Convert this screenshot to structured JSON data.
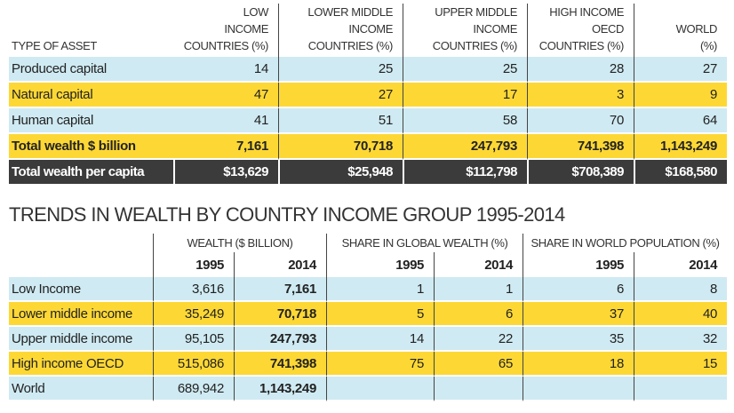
{
  "asset_table": {
    "headers": [
      "TYPE OF ASSET",
      "LOW INCOME COUNTRIES (%)",
      "LOWER MIDDLE INCOME COUNTRIES (%)",
      "UPPER MIDDLE INCOME COUNTRIES (%)",
      "HIGH INCOME OECD COUNTRIES (%)",
      "WORLD (%)"
    ],
    "header_lines": [
      [
        "TYPE OF ASSET"
      ],
      [
        "LOW",
        "INCOME",
        "COUNTRIES (%)"
      ],
      [
        "LOWER MIDDLE",
        "INCOME",
        "COUNTRIES (%)"
      ],
      [
        "UPPER MIDDLE",
        "INCOME",
        "COUNTRIES (%)"
      ],
      [
        "HIGH INCOME",
        "OECD",
        "COUNTRIES (%)"
      ],
      [
        "WORLD",
        "(%)"
      ]
    ],
    "rows": [
      {
        "label": "Produced capital",
        "values": [
          "14",
          "25",
          "25",
          "28",
          "27"
        ],
        "style": "blue"
      },
      {
        "label": "Natural capital",
        "values": [
          "47",
          "27",
          "17",
          "3",
          "9"
        ],
        "style": "yellow"
      },
      {
        "label": "Human capital",
        "values": [
          "41",
          "51",
          "58",
          "70",
          "64"
        ],
        "style": "blue"
      },
      {
        "label": "Total wealth $ billion",
        "values": [
          "7,161",
          "70,718",
          "247,793",
          "741,398",
          "1,143,249"
        ],
        "style": "yellow bold"
      },
      {
        "label": "Total wealth per capita",
        "values": [
          "$13,629",
          "$25,948",
          "$112,798",
          "$708,389",
          "$168,580"
        ],
        "style": "dark"
      }
    ]
  },
  "trends_table": {
    "title": "TRENDS IN WEALTH BY COUNTRY INCOME GROUP 1995-2014",
    "groups": [
      "WEALTH ($ BILLION)",
      "SHARE IN GLOBAL WEALTH (%)",
      "SHARE IN WORLD POPULATION (%)"
    ],
    "years": [
      "1995",
      "2014",
      "1995",
      "2014",
      "1995",
      "2014"
    ],
    "rows": [
      {
        "label": "Low Income",
        "values": [
          "3,616",
          "7,161",
          "1",
          "1",
          "6",
          "8"
        ],
        "style": "blue"
      },
      {
        "label": "Lower middle income",
        "values": [
          "35,249",
          "70,718",
          "5",
          "6",
          "37",
          "40"
        ],
        "style": "yellow"
      },
      {
        "label": "Upper middle income",
        "values": [
          "95,105",
          "247,793",
          "14",
          "22",
          "35",
          "32"
        ],
        "style": "blue"
      },
      {
        "label": "High income OECD",
        "values": [
          "515,086",
          "741,398",
          "75",
          "65",
          "18",
          "15"
        ],
        "style": "yellow"
      },
      {
        "label": "World",
        "values": [
          "689,942",
          "1,143,249",
          "",
          "",
          "",
          ""
        ],
        "style": "blue"
      }
    ]
  },
  "colors": {
    "row_blue": "#cfeaf2",
    "row_yellow": "#fdd835",
    "row_dark": "#3b3b3b"
  }
}
